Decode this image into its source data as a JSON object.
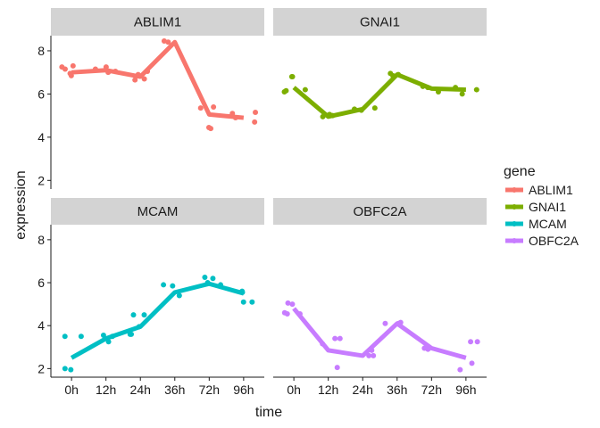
{
  "chart_data": {
    "type": "line",
    "facet_by": "gene",
    "x": [
      "0h",
      "12h",
      "24h",
      "36h",
      "72h",
      "96h"
    ],
    "xlabel": "time",
    "ylabel": "expression",
    "ylim": [
      1.6,
      8.7
    ],
    "yticks": [
      2,
      4,
      6,
      8
    ],
    "legend_title": "gene",
    "legend_position": "right",
    "grid": false,
    "series": [
      {
        "name": "ABLIM1",
        "color": "#F8766D",
        "values": [
          7.0,
          7.1,
          6.8,
          8.4,
          5.05,
          4.9
        ],
        "points": [
          {
            "x": "0h",
            "y": [
              6.85,
              7.3,
              7.25,
              7.15,
              6.95
            ]
          },
          {
            "x": "12h",
            "y": [
              7.25,
              7.15,
              7.05,
              7.0
            ]
          },
          {
            "x": "24h",
            "y": [
              6.9,
              6.65,
              7.05,
              6.7
            ]
          },
          {
            "x": "36h",
            "y": [
              8.45,
              8.35,
              8.4
            ]
          },
          {
            "x": "72h",
            "y": [
              5.4,
              5.35,
              4.4,
              4.45
            ]
          },
          {
            "x": "96h",
            "y": [
              4.9,
              5.1,
              4.7,
              5.15
            ]
          }
        ]
      },
      {
        "name": "GNAI1",
        "color": "#7CAE00",
        "values": [
          6.3,
          4.95,
          5.3,
          6.9,
          6.25,
          6.2
        ],
        "points": [
          {
            "x": "0h",
            "y": [
              6.1,
              6.8,
              6.2,
              6.15,
              6.8
            ]
          },
          {
            "x": "12h",
            "y": [
              5.05,
              5.0,
              4.95
            ]
          },
          {
            "x": "24h",
            "y": [
              5.3,
              5.35,
              5.25
            ]
          },
          {
            "x": "36h",
            "y": [
              6.95,
              6.9,
              6.85
            ]
          },
          {
            "x": "72h",
            "y": [
              6.35,
              6.1,
              6.3
            ]
          },
          {
            "x": "96h",
            "y": [
              6.0,
              6.3,
              6.2
            ]
          }
        ]
      },
      {
        "name": "MCAM",
        "color": "#00BFC4",
        "values": [
          2.5,
          3.4,
          3.95,
          5.55,
          5.95,
          5.5
        ],
        "points": [
          {
            "x": "0h",
            "y": [
              2.0,
              3.5,
              1.95,
              3.5
            ]
          },
          {
            "x": "12h",
            "y": [
              3.25,
              3.55,
              3.5
            ]
          },
          {
            "x": "24h",
            "y": [
              4.5,
              3.6,
              4.5,
              3.95,
              3.6
            ]
          },
          {
            "x": "36h",
            "y": [
              5.9,
              5.85,
              5.4
            ]
          },
          {
            "x": "72h",
            "y": [
              6.2,
              5.9,
              6.25,
              6.0
            ]
          },
          {
            "x": "96h",
            "y": [
              5.1,
              5.6,
              5.1,
              5.55
            ]
          }
        ]
      },
      {
        "name": "OBFC2A",
        "color": "#C77CFF",
        "values": [
          4.8,
          2.85,
          2.6,
          4.1,
          2.95,
          2.5
        ],
        "points": [
          {
            "x": "0h",
            "y": [
              5.0,
              5.05,
              4.55,
              4.55,
              4.6
            ]
          },
          {
            "x": "12h",
            "y": [
              3.15,
              3.4,
              2.05,
              3.4
            ]
          },
          {
            "x": "24h",
            "y": [
              2.6,
              2.85,
              2.6
            ]
          },
          {
            "x": "36h",
            "y": [
              4.15,
              4.1,
              4.1
            ]
          },
          {
            "x": "72h",
            "y": [
              3.05,
              2.9,
              2.95,
              3.0
            ]
          },
          {
            "x": "96h",
            "y": [
              3.25,
              2.25,
              1.95,
              3.25
            ]
          }
        ]
      }
    ]
  }
}
